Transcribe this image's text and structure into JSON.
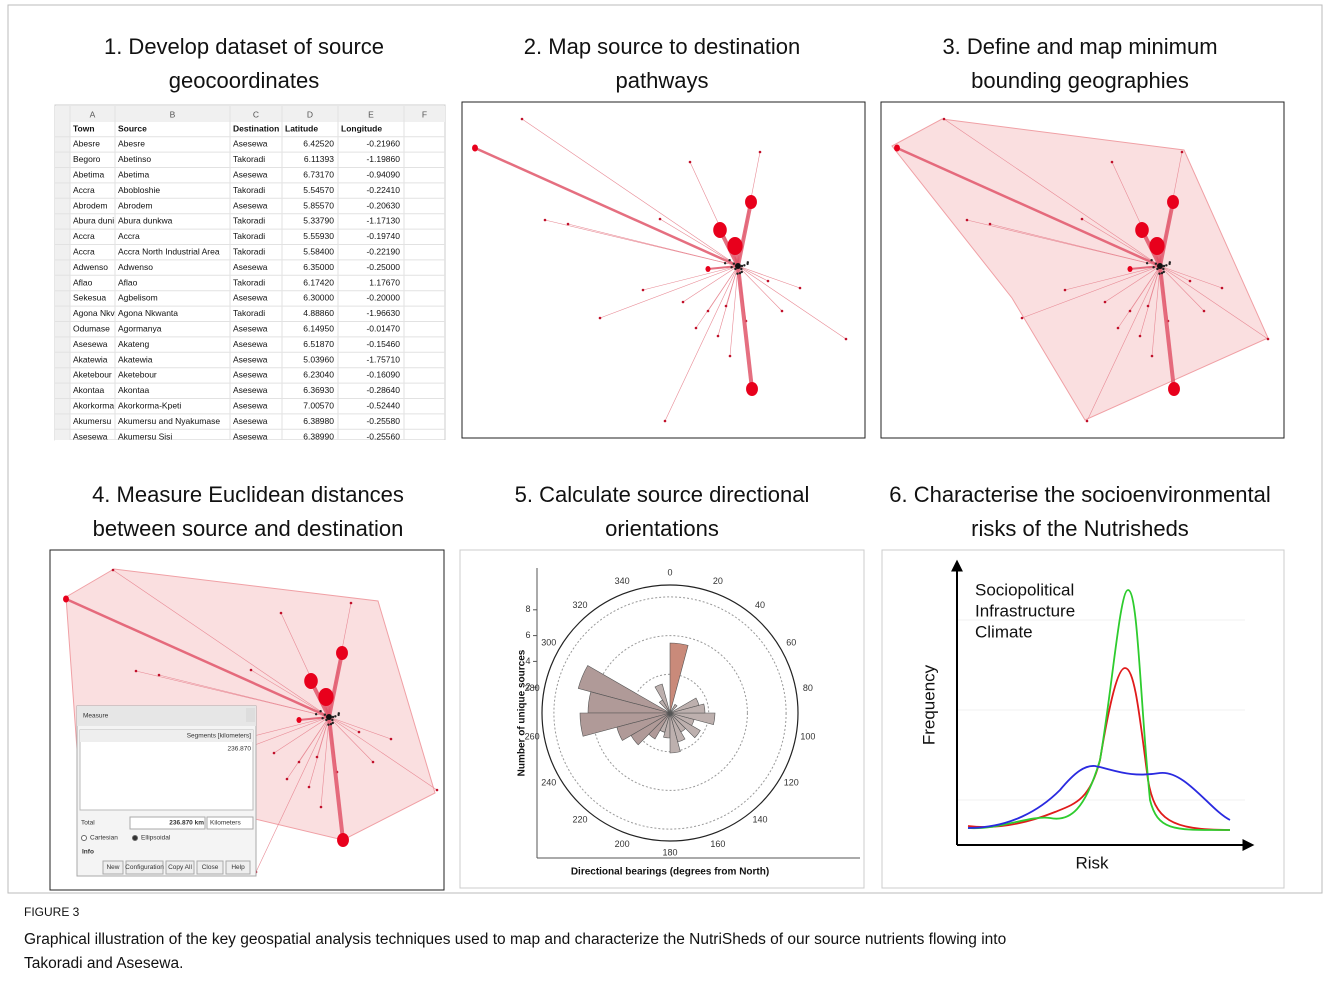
{
  "panels": [
    {
      "title": [
        "1. Develop dataset of source",
        "geocoordinates"
      ]
    },
    {
      "title": [
        "2. Map source to destination",
        "pathways"
      ]
    },
    {
      "title": [
        "3. Define and map minimum",
        "bounding geographies"
      ]
    },
    {
      "title": [
        "4. Measure Euclidean distances",
        "between source and destination"
      ]
    },
    {
      "title": [
        "5. Calculate source directional",
        "orientations"
      ]
    },
    {
      "title": [
        "6. Characterise the socioenvironmental",
        "risks of the Nutrisheds"
      ]
    }
  ],
  "table": {
    "columns": [
      "A",
      "B",
      "C",
      "D",
      "E",
      "F"
    ],
    "header": [
      "Town",
      "Source",
      "Destination",
      "Latitude",
      "Longitude"
    ],
    "rows": [
      [
        "Abesre",
        "Abesre",
        "Asesewa",
        "6.42520",
        "-0.21960"
      ],
      [
        "Begoro",
        "Abetinso",
        "Takoradi",
        "6.11393",
        "-1.19860"
      ],
      [
        "Abetima",
        "Abetima",
        "Asesewa",
        "6.73170",
        "-0.94090"
      ],
      [
        "Accra",
        "Abobloshie",
        "Takoradi",
        "5.54570",
        "-0.22410"
      ],
      [
        "Abrodem",
        "Abrodem",
        "Asesewa",
        "5.85570",
        "-0.20630"
      ],
      [
        "Abura duni",
        "Abura dunkwa",
        "Takoradi",
        "5.33790",
        "-1.17130"
      ],
      [
        "Accra",
        "Accra",
        "Takoradi",
        "5.55930",
        "-0.19740"
      ],
      [
        "Accra",
        "Accra North Industrial Area",
        "Takoradi",
        "5.58400",
        "-0.22190"
      ],
      [
        "Adwenso",
        "Adwenso",
        "Asesewa",
        "6.35000",
        "-0.25000"
      ],
      [
        "Aflao",
        "Aflao",
        "Takoradi",
        "6.17420",
        "1.17670"
      ],
      [
        "Sekesua",
        "Agbelisom",
        "Asesewa",
        "6.30000",
        "-0.20000"
      ],
      [
        "Agona Nkv",
        "Agona Nkwanta",
        "Takoradi",
        "4.88860",
        "-1.96630"
      ],
      [
        "Odumase",
        "Agormanya",
        "Asesewa",
        "6.14950",
        "-0.01470"
      ],
      [
        "Asesewa",
        "Akateng",
        "Asesewa",
        "6.51870",
        "-0.15460"
      ],
      [
        "Akatewia",
        "Akatewia",
        "Asesewa",
        "5.03960",
        "-1.75710"
      ],
      [
        "Aketebour",
        "Aketebour",
        "Asesewa",
        "6.23040",
        "-0.16090"
      ],
      [
        "Akontaa",
        "Akontaa",
        "Asesewa",
        "6.36930",
        "-0.28640"
      ],
      [
        "Akorkorma",
        "Akorkorma-Kpeti",
        "Asesewa",
        "7.00570",
        "-0.52440"
      ],
      [
        "Akumersu",
        "Akumersu and Nyakumase",
        "Asesewa",
        "6.38980",
        "-0.25580"
      ],
      [
        "Asesewa",
        "Akumersu Sisi",
        "Asesewa",
        "6.38990",
        "-0.25560"
      ]
    ]
  },
  "measure_dialog": {
    "title": "Measure",
    "column": "Segments [kilometers]",
    "segment": "236.870",
    "total_label": "Total",
    "total": "236.870 km",
    "unit": "Kilometers",
    "options": [
      "Cartesian",
      "Ellipsoidal"
    ],
    "info": "Info",
    "buttons": [
      "New",
      "Configuration",
      "Copy All",
      "Close",
      "Help"
    ]
  },
  "rose": {
    "y_label": "Number of unique sources",
    "x_label": "Directional bearings (degrees from North)",
    "yticks": [
      2,
      4,
      6,
      8
    ],
    "angles": [
      0,
      20,
      40,
      60,
      80,
      100,
      120,
      140,
      160,
      180,
      200,
      220,
      240,
      260,
      280,
      300,
      320,
      340
    ]
  },
  "risk": {
    "legend": [
      {
        "name": "Sociopolitical",
        "color": "#e01b1b"
      },
      {
        "name": "Infrastructure",
        "color": "#2ecc2e"
      },
      {
        "name": "Climate",
        "color": "#2a2ae0"
      }
    ],
    "y_label": "Frequency",
    "x_label": "Risk"
  },
  "caption": {
    "label": "FIGURE 3",
    "lines": [
      "Graphical illustration of the key geospatial analysis techniques used to map and characterize the NutriSheds of our source nutrients flowing into",
      "Takoradi and Asesewa."
    ]
  }
}
